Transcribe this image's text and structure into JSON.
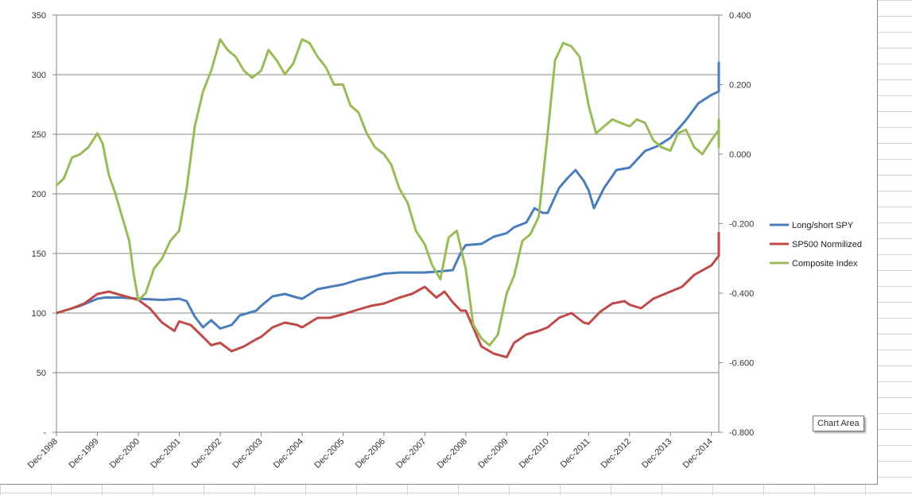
{
  "chart_data": {
    "type": "line",
    "title": "",
    "xlabel": "",
    "ylabel": "",
    "x_tick_labels": [
      "Dec-1998",
      "Dec-1999",
      "Dec-2000",
      "Dec-2001",
      "Dec-2002",
      "Dec-2003",
      "Dec-2004",
      "Dec-2005",
      "Dec-2006",
      "Dec-2007",
      "Dec-2008",
      "Dec-2009",
      "Dec-2010",
      "Dec-2011",
      "Dec-2012",
      "Dec-2013",
      "Dec-2014"
    ],
    "xlim_years": [
      1998.92,
      2015.1
    ],
    "primary_axis": {
      "ylim": [
        0,
        350
      ],
      "tick_labels": [
        "-",
        "50",
        "100",
        "150",
        "200",
        "250",
        "300",
        "350"
      ]
    },
    "secondary_axis": {
      "ylim": [
        -0.8,
        0.4
      ],
      "tick_labels": [
        "-0.800",
        "-0.600",
        "-0.400",
        "-0.200",
        "0.000",
        "0.200",
        "0.400"
      ]
    },
    "grid": "horizontal major gridlines on primary axis",
    "legend_position": "right",
    "series": [
      {
        "name": "Long/short SPY",
        "color": "#4a7ebb",
        "axis": "primary",
        "points": [
          [
            1998.92,
            100
          ],
          [
            1999.5,
            106
          ],
          [
            1999.92,
            112
          ],
          [
            2000.1,
            113
          ],
          [
            2000.5,
            113
          ],
          [
            2000.92,
            112
          ],
          [
            2001.5,
            111
          ],
          [
            2001.92,
            112
          ],
          [
            2002.1,
            110
          ],
          [
            2002.3,
            97
          ],
          [
            2002.5,
            88
          ],
          [
            2002.7,
            94
          ],
          [
            2002.92,
            87
          ],
          [
            2003.2,
            90
          ],
          [
            2003.4,
            98
          ],
          [
            2003.8,
            102
          ],
          [
            2003.92,
            106
          ],
          [
            2004.2,
            114
          ],
          [
            2004.5,
            116
          ],
          [
            2004.8,
            113
          ],
          [
            2004.92,
            112
          ],
          [
            2005.3,
            120
          ],
          [
            2005.6,
            122
          ],
          [
            2005.92,
            124
          ],
          [
            2006.3,
            128
          ],
          [
            2006.7,
            131
          ],
          [
            2006.92,
            133
          ],
          [
            2007.3,
            134
          ],
          [
            2007.92,
            134
          ],
          [
            2008.3,
            135
          ],
          [
            2008.6,
            136
          ],
          [
            2008.8,
            151
          ],
          [
            2008.92,
            157
          ],
          [
            2009.3,
            158
          ],
          [
            2009.6,
            164
          ],
          [
            2009.92,
            167
          ],
          [
            2010.1,
            172
          ],
          [
            2010.4,
            176
          ],
          [
            2010.6,
            188
          ],
          [
            2010.8,
            184
          ],
          [
            2010.92,
            184
          ],
          [
            2011.2,
            205
          ],
          [
            2011.4,
            213
          ],
          [
            2011.6,
            220
          ],
          [
            2011.8,
            211
          ],
          [
            2011.92,
            203
          ],
          [
            2012.05,
            188
          ],
          [
            2012.3,
            205
          ],
          [
            2012.6,
            220
          ],
          [
            2012.92,
            222
          ],
          [
            2013.3,
            236
          ],
          [
            2013.6,
            240
          ],
          [
            2013.92,
            247
          ],
          [
            2014.3,
            262
          ],
          [
            2014.6,
            276
          ],
          [
            2014.92,
            283
          ],
          [
            2015.2,
            286
          ],
          [
            2015.5,
            296
          ],
          [
            2015.8,
            302
          ],
          [
            2015.92,
            310
          ],
          [
            2016.1,
            306
          ]
        ]
      },
      {
        "name": "SP500 Normilized",
        "color": "#be4b48",
        "axis": "primary",
        "points": [
          [
            1998.92,
            100
          ],
          [
            1999.3,
            104
          ],
          [
            1999.6,
            108
          ],
          [
            1999.92,
            116
          ],
          [
            2000.2,
            118
          ],
          [
            2000.5,
            115
          ],
          [
            2000.92,
            111
          ],
          [
            2001.2,
            104
          ],
          [
            2001.5,
            92
          ],
          [
            2001.8,
            85
          ],
          [
            2001.92,
            93
          ],
          [
            2002.2,
            90
          ],
          [
            2002.5,
            80
          ],
          [
            2002.7,
            73
          ],
          [
            2002.92,
            75
          ],
          [
            2003.2,
            68
          ],
          [
            2003.5,
            72
          ],
          [
            2003.8,
            78
          ],
          [
            2003.92,
            80
          ],
          [
            2004.2,
            88
          ],
          [
            2004.5,
            92
          ],
          [
            2004.8,
            90
          ],
          [
            2004.92,
            88
          ],
          [
            2005.3,
            96
          ],
          [
            2005.6,
            96
          ],
          [
            2005.92,
            99
          ],
          [
            2006.3,
            103
          ],
          [
            2006.6,
            106
          ],
          [
            2006.92,
            108
          ],
          [
            2007.3,
            113
          ],
          [
            2007.6,
            116
          ],
          [
            2007.92,
            122
          ],
          [
            2008.2,
            113
          ],
          [
            2008.4,
            118
          ],
          [
            2008.6,
            109
          ],
          [
            2008.8,
            102
          ],
          [
            2008.92,
            102
          ],
          [
            2009.1,
            88
          ],
          [
            2009.3,
            72
          ],
          [
            2009.6,
            66
          ],
          [
            2009.92,
            63
          ],
          [
            2010.1,
            75
          ],
          [
            2010.4,
            82
          ],
          [
            2010.7,
            85
          ],
          [
            2010.92,
            88
          ],
          [
            2011.2,
            96
          ],
          [
            2011.5,
            100
          ],
          [
            2011.8,
            92
          ],
          [
            2011.92,
            91
          ],
          [
            2012.2,
            101
          ],
          [
            2012.5,
            108
          ],
          [
            2012.8,
            110
          ],
          [
            2012.92,
            107
          ],
          [
            2013.2,
            104
          ],
          [
            2013.5,
            112
          ],
          [
            2013.92,
            118
          ],
          [
            2014.2,
            122
          ],
          [
            2014.5,
            132
          ],
          [
            2014.92,
            140
          ],
          [
            2015.2,
            148
          ],
          [
            2015.5,
            152
          ],
          [
            2015.8,
            160
          ],
          [
            2015.92,
            167
          ],
          [
            2016.1,
            168
          ]
        ]
      },
      {
        "name": "Composite Index",
        "color": "#9bbb59",
        "axis": "secondary",
        "points": [
          [
            1998.92,
            -0.09
          ],
          [
            1999.1,
            -0.07
          ],
          [
            1999.3,
            -0.01
          ],
          [
            1999.5,
            0.0
          ],
          [
            1999.7,
            0.02
          ],
          [
            1999.92,
            0.06
          ],
          [
            2000.05,
            0.03
          ],
          [
            2000.2,
            -0.06
          ],
          [
            2000.35,
            -0.11
          ],
          [
            2000.5,
            -0.17
          ],
          [
            2000.7,
            -0.25
          ],
          [
            2000.8,
            -0.34
          ],
          [
            2000.92,
            -0.42
          ],
          [
            2001.1,
            -0.4
          ],
          [
            2001.3,
            -0.33
          ],
          [
            2001.5,
            -0.3
          ],
          [
            2001.7,
            -0.25
          ],
          [
            2001.92,
            -0.22
          ],
          [
            2002.1,
            -0.1
          ],
          [
            2002.3,
            0.08
          ],
          [
            2002.5,
            0.18
          ],
          [
            2002.7,
            0.24
          ],
          [
            2002.92,
            0.33
          ],
          [
            2003.1,
            0.3
          ],
          [
            2003.3,
            0.28
          ],
          [
            2003.5,
            0.24
          ],
          [
            2003.7,
            0.22
          ],
          [
            2003.92,
            0.24
          ],
          [
            2004.1,
            0.3
          ],
          [
            2004.3,
            0.27
          ],
          [
            2004.5,
            0.23
          ],
          [
            2004.7,
            0.26
          ],
          [
            2004.92,
            0.33
          ],
          [
            2005.1,
            0.32
          ],
          [
            2005.3,
            0.28
          ],
          [
            2005.5,
            0.25
          ],
          [
            2005.7,
            0.2
          ],
          [
            2005.92,
            0.2
          ],
          [
            2006.1,
            0.14
          ],
          [
            2006.3,
            0.12
          ],
          [
            2006.5,
            0.06
          ],
          [
            2006.7,
            0.02
          ],
          [
            2006.92,
            0.0
          ],
          [
            2007.1,
            -0.03
          ],
          [
            2007.3,
            -0.1
          ],
          [
            2007.5,
            -0.14
          ],
          [
            2007.7,
            -0.22
          ],
          [
            2007.92,
            -0.26
          ],
          [
            2008.1,
            -0.32
          ],
          [
            2008.3,
            -0.36
          ],
          [
            2008.5,
            -0.24
          ],
          [
            2008.7,
            -0.22
          ],
          [
            2008.92,
            -0.33
          ],
          [
            2009.1,
            -0.49
          ],
          [
            2009.3,
            -0.53
          ],
          [
            2009.5,
            -0.55
          ],
          [
            2009.7,
            -0.52
          ],
          [
            2009.92,
            -0.4
          ],
          [
            2010.1,
            -0.35
          ],
          [
            2010.3,
            -0.25
          ],
          [
            2010.5,
            -0.23
          ],
          [
            2010.7,
            -0.18
          ],
          [
            2010.92,
            0.06
          ],
          [
            2011.1,
            0.27
          ],
          [
            2011.3,
            0.32
          ],
          [
            2011.5,
            0.31
          ],
          [
            2011.7,
            0.28
          ],
          [
            2011.92,
            0.14
          ],
          [
            2012.1,
            0.06
          ],
          [
            2012.3,
            0.08
          ],
          [
            2012.5,
            0.1
          ],
          [
            2012.7,
            0.09
          ],
          [
            2012.92,
            0.08
          ],
          [
            2013.1,
            0.1
          ],
          [
            2013.3,
            0.09
          ],
          [
            2013.5,
            0.04
          ],
          [
            2013.7,
            0.02
          ],
          [
            2013.92,
            0.01
          ],
          [
            2014.1,
            0.06
          ],
          [
            2014.3,
            0.07
          ],
          [
            2014.5,
            0.02
          ],
          [
            2014.7,
            0.0
          ],
          [
            2014.92,
            0.04
          ],
          [
            2015.1,
            0.07
          ],
          [
            2015.3,
            0.05
          ],
          [
            2015.5,
            0.02
          ],
          [
            2015.7,
            0.03
          ],
          [
            2015.92,
            0.1
          ],
          [
            2016.1,
            0.06
          ]
        ]
      }
    ]
  },
  "ui": {
    "tooltip": "Chart Area"
  }
}
